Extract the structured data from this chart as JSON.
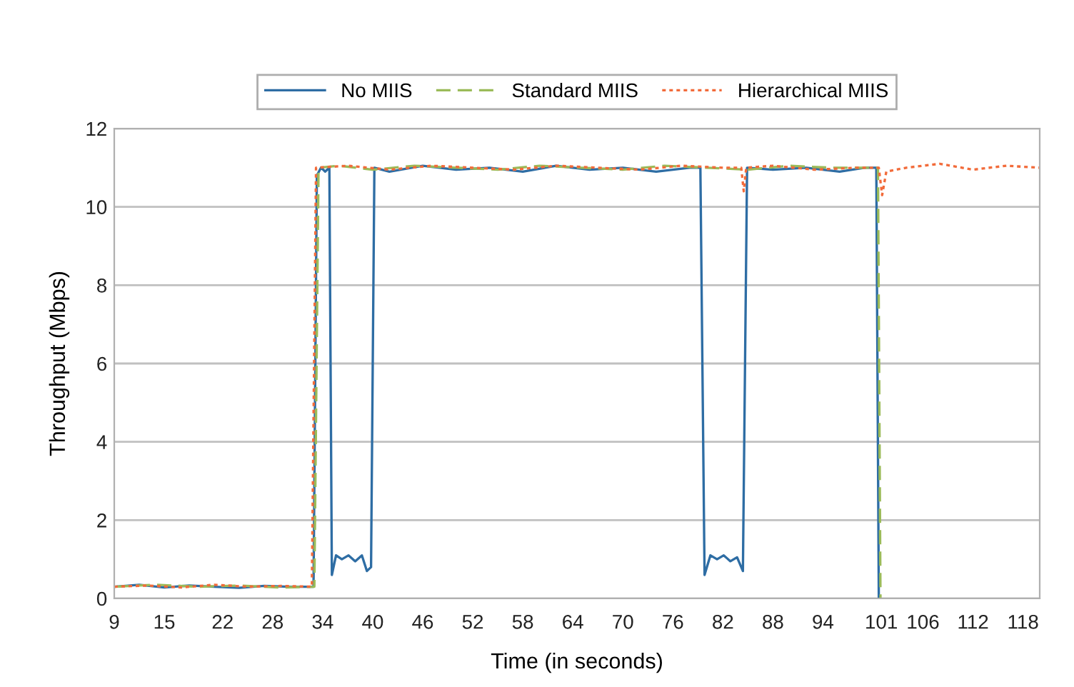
{
  "chart_data": {
    "type": "line",
    "xlabel": "Time (in seconds)",
    "ylabel": "Throughput (Mbps)",
    "xlim": [
      9,
      120
    ],
    "ylim": [
      0,
      12
    ],
    "yticks": [
      0,
      2,
      4,
      6,
      8,
      10,
      12
    ],
    "xticks": [
      9,
      15,
      22,
      28,
      34,
      40,
      46,
      52,
      58,
      64,
      70,
      76,
      82,
      88,
      94,
      101,
      106,
      112,
      118
    ],
    "grid": "y",
    "legend": "top",
    "marker": "none",
    "series": [
      {
        "name": "No MIIS",
        "color": "#2e6da4",
        "line_style": "solid",
        "x": [
          9,
          12,
          15,
          18,
          21,
          24,
          27,
          30,
          32.9,
          33.3,
          33.8,
          34.3,
          34.8,
          35.1,
          35.6,
          36.3,
          37.1,
          37.9,
          38.7,
          39.3,
          39.8,
          40.2,
          42,
          46,
          50,
          54,
          58,
          62,
          66,
          70,
          74,
          78,
          79.3,
          79.8,
          80.5,
          81.3,
          82.1,
          82.9,
          83.7,
          84.4,
          84.9,
          88,
          92,
          96,
          99,
          100.4,
          100.7
        ],
        "values": [
          0.3,
          0.35,
          0.28,
          0.33,
          0.3,
          0.27,
          0.32,
          0.3,
          0.3,
          10.8,
          11.0,
          10.9,
          11.0,
          0.6,
          1.1,
          1.0,
          1.1,
          0.95,
          1.1,
          0.7,
          0.8,
          11.0,
          10.9,
          11.05,
          10.95,
          11.0,
          10.9,
          11.05,
          10.95,
          11.0,
          10.9,
          11.0,
          11.0,
          0.6,
          1.1,
          1.0,
          1.1,
          0.95,
          1.05,
          0.7,
          11.0,
          10.95,
          11.0,
          10.9,
          11.0,
          11.0,
          0
        ]
      },
      {
        "name": "Standard MIIS",
        "color": "#9bbb59",
        "line_style": "dashed",
        "x": [
          9,
          14,
          19,
          24,
          29,
          33.0,
          33.5,
          36,
          40,
          45,
          50,
          55,
          60,
          65,
          70,
          75,
          80,
          85,
          90,
          95,
          100.6,
          100.9
        ],
        "values": [
          0.3,
          0.35,
          0.3,
          0.33,
          0.28,
          0.3,
          11.0,
          11.05,
          10.95,
          11.05,
          11.0,
          10.95,
          11.05,
          11.0,
          10.95,
          11.05,
          11.0,
          10.95,
          11.05,
          11.0,
          11.0,
          0
        ]
      },
      {
        "name": "Hierarchical MIIS",
        "color": "#f26b3a",
        "line_style": "dotted",
        "x": [
          9,
          13,
          17,
          21,
          25,
          29,
          32.7,
          33.2,
          37,
          42,
          47,
          52,
          57,
          62,
          67,
          72,
          77,
          82,
          84.2,
          84.5,
          84.8,
          88,
          93,
          98,
          100.7,
          101.1,
          101.6,
          104,
          108,
          112,
          116,
          120
        ],
        "values": [
          0.3,
          0.33,
          0.28,
          0.35,
          0.3,
          0.32,
          0.3,
          11.0,
          11.05,
          10.95,
          11.05,
          11.0,
          10.95,
          11.05,
          11.0,
          10.95,
          11.05,
          11.0,
          11.0,
          10.4,
          11.0,
          11.05,
          10.95,
          11.0,
          11.0,
          10.3,
          10.9,
          11.0,
          11.1,
          10.95,
          11.05,
          11.0
        ]
      }
    ]
  }
}
